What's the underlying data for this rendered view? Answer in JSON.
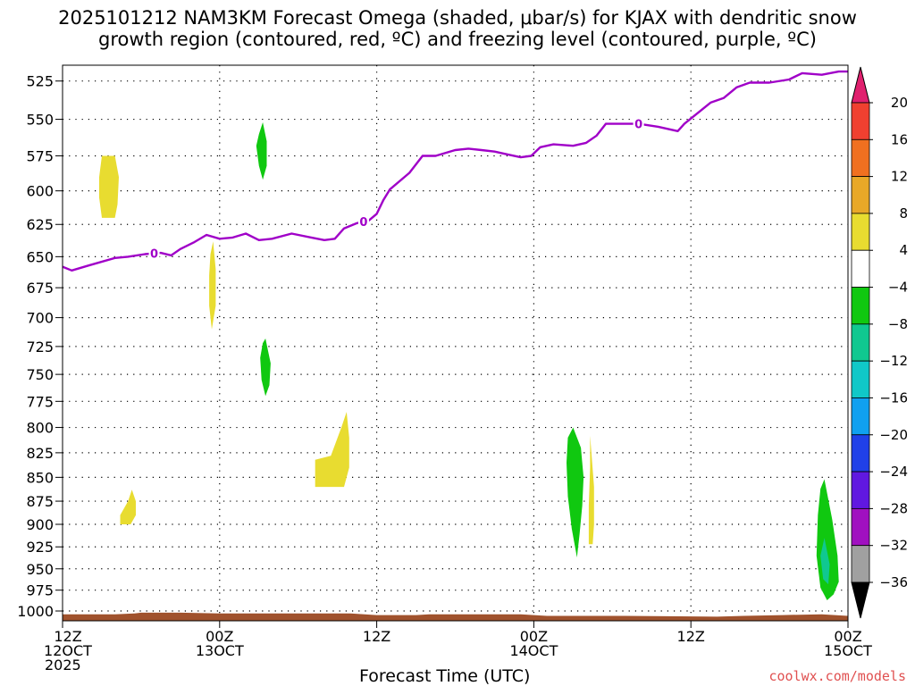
{
  "chart_data": {
    "type": "heatmap",
    "title": "2025101212 NAM3KM Forecast Omega (shaded, μbar/s) for KJAX with dendritic snow",
    "subtitle": "growth region (contoured, red, ºC) and freezing level (contoured, purple, ºC)",
    "xlabel": "Forecast Time (UTC)",
    "x_ticks": [
      {
        "hour": 0,
        "lines": [
          "12Z",
          "12OCT",
          "2025"
        ]
      },
      {
        "hour": 12,
        "lines": [
          "00Z",
          "13OCT"
        ]
      },
      {
        "hour": 24,
        "lines": [
          "12Z"
        ]
      },
      {
        "hour": 36,
        "lines": [
          "00Z",
          "14OCT"
        ]
      },
      {
        "hour": 48,
        "lines": [
          "12Z"
        ]
      },
      {
        "hour": 60,
        "lines": [
          "00Z",
          "15OCT"
        ]
      }
    ],
    "xlim": [
      0,
      60
    ],
    "y_ticks": [
      525,
      550,
      575,
      600,
      625,
      650,
      675,
      700,
      725,
      750,
      775,
      800,
      825,
      850,
      875,
      900,
      925,
      950,
      975,
      1000
    ],
    "ylim": [
      1012,
      515
    ],
    "y_scale": "log",
    "grid": true,
    "colorbar": {
      "labels": [
        "20",
        "16",
        "12",
        "8",
        "4",
        "−4",
        "−8",
        "−12",
        "−16",
        "−20",
        "−24",
        "−28",
        "−32",
        "−36"
      ],
      "colors": [
        "#e0206e",
        "#f04030",
        "#f07020",
        "#e8a828",
        "#e8dc30",
        "#ffffff",
        "#10c810",
        "#10c890",
        "#10c8c8",
        "#10a0f0",
        "#2040e8",
        "#6018e0",
        "#a010c0",
        "#a0a0a0",
        "#000000"
      ]
    },
    "freezing_level": {
      "color": "#a000c8",
      "label": "0",
      "label_hours": [
        7.0,
        23.0,
        44.0
      ],
      "points": [
        [
          0,
          658
        ],
        [
          0.7,
          661
        ],
        [
          2,
          657
        ],
        [
          4,
          651
        ],
        [
          5,
          650
        ],
        [
          6.3,
          648
        ],
        [
          7.5,
          647
        ],
        [
          8.3,
          649
        ],
        [
          9,
          644
        ],
        [
          10,
          639
        ],
        [
          11,
          633
        ],
        [
          12,
          636
        ],
        [
          13,
          635
        ],
        [
          14,
          632
        ],
        [
          15,
          637
        ],
        [
          16,
          636
        ],
        [
          17.5,
          632
        ],
        [
          19,
          635
        ],
        [
          20,
          637
        ],
        [
          20.8,
          636
        ],
        [
          21.5,
          628
        ],
        [
          22.5,
          624
        ],
        [
          23.4,
          622
        ],
        [
          24,
          617
        ],
        [
          24.5,
          607
        ],
        [
          25,
          599
        ],
        [
          26.5,
          587
        ],
        [
          27.5,
          575
        ],
        [
          28.5,
          575
        ],
        [
          30,
          571
        ],
        [
          31,
          570
        ],
        [
          32,
          571
        ],
        [
          33,
          572
        ],
        [
          34,
          574
        ],
        [
          35,
          576
        ],
        [
          35.8,
          575
        ],
        [
          36.5,
          569
        ],
        [
          37.5,
          567
        ],
        [
          39,
          568
        ],
        [
          40,
          566
        ],
        [
          40.8,
          561
        ],
        [
          41.5,
          553
        ],
        [
          42.5,
          553
        ],
        [
          44,
          553
        ],
        [
          45.5,
          555
        ],
        [
          47,
          558
        ],
        [
          47.5,
          553
        ],
        [
          48.5,
          546
        ],
        [
          49.5,
          539
        ],
        [
          50.5,
          536
        ],
        [
          51.5,
          529
        ],
        [
          52.5,
          526
        ],
        [
          54,
          526
        ],
        [
          55.5,
          524
        ],
        [
          56.5,
          520
        ],
        [
          58,
          521
        ],
        [
          59.3,
          519
        ],
        [
          60,
          519
        ]
      ]
    },
    "omega_regions": [
      {
        "color": "#e8dc30",
        "points": [
          [
            3,
            575
          ],
          [
            4,
            575
          ],
          [
            4.3,
            590
          ],
          [
            4.2,
            610
          ],
          [
            4,
            620
          ],
          [
            3,
            620
          ],
          [
            2.8,
            605
          ],
          [
            2.8,
            590
          ]
        ]
      },
      {
        "color": "#10c810",
        "points": [
          [
            15.3,
            552
          ],
          [
            15.6,
            565
          ],
          [
            15.6,
            582
          ],
          [
            15.3,
            592
          ],
          [
            15.0,
            582
          ],
          [
            14.8,
            568
          ],
          [
            15.0,
            560
          ]
        ]
      },
      {
        "color": "#e8dc30",
        "points": [
          [
            11.5,
            638
          ],
          [
            11.7,
            660
          ],
          [
            11.7,
            690
          ],
          [
            11.4,
            710
          ],
          [
            11.2,
            690
          ],
          [
            11.2,
            665
          ],
          [
            11.3,
            648
          ]
        ]
      },
      {
        "color": "#10c810",
        "points": [
          [
            15.5,
            718
          ],
          [
            15.9,
            740
          ],
          [
            15.8,
            760
          ],
          [
            15.5,
            770
          ],
          [
            15.2,
            755
          ],
          [
            15.1,
            735
          ],
          [
            15.3,
            722
          ]
        ]
      },
      {
        "color": "#e8dc30",
        "points": [
          [
            19.3,
            832
          ],
          [
            20.5,
            828
          ],
          [
            21.3,
            800
          ],
          [
            21.7,
            785
          ],
          [
            21.9,
            810
          ],
          [
            21.9,
            840
          ],
          [
            21.5,
            860
          ],
          [
            19.3,
            860
          ]
        ]
      },
      {
        "color": "#e8dc30",
        "points": [
          [
            5.3,
            863
          ],
          [
            5.6,
            875
          ],
          [
            5.6,
            890
          ],
          [
            5.2,
            900
          ],
          [
            4.4,
            900
          ],
          [
            4.4,
            890
          ],
          [
            5.0,
            875
          ]
        ]
      },
      {
        "color": "#10c810",
        "points": [
          [
            39.0,
            800
          ],
          [
            39.6,
            820
          ],
          [
            39.8,
            850
          ],
          [
            39.7,
            880
          ],
          [
            39.5,
            910
          ],
          [
            39.3,
            937
          ],
          [
            38.9,
            905
          ],
          [
            38.6,
            870
          ],
          [
            38.5,
            835
          ],
          [
            38.6,
            810
          ]
        ]
      },
      {
        "color": "#e8dc30",
        "points": [
          [
            40.3,
            808
          ],
          [
            40.6,
            860
          ],
          [
            40.6,
            900
          ],
          [
            40.5,
            922
          ],
          [
            40.2,
            922
          ],
          [
            40.2,
            880
          ],
          [
            40.3,
            840
          ]
        ]
      },
      {
        "color": "#10c810",
        "points": [
          [
            58.2,
            852
          ],
          [
            58.8,
            895
          ],
          [
            59.2,
            935
          ],
          [
            59.3,
            965
          ],
          [
            58.9,
            980
          ],
          [
            58.4,
            987
          ],
          [
            57.9,
            972
          ],
          [
            57.6,
            935
          ],
          [
            57.7,
            890
          ],
          [
            57.9,
            862
          ]
        ]
      },
      {
        "color": "#10c890",
        "points": [
          [
            58.2,
            915
          ],
          [
            58.6,
            945
          ],
          [
            58.5,
            968
          ],
          [
            58.1,
            962
          ],
          [
            57.9,
            935
          ]
        ]
      }
    ],
    "terrain": {
      "color": "#a0522d",
      "top_points": [
        [
          0,
          1004
        ],
        [
          4,
          1004
        ],
        [
          5.5,
          1003
        ],
        [
          6,
          1002
        ],
        [
          9,
          1002
        ],
        [
          12,
          1003
        ],
        [
          16,
          1003
        ],
        [
          22,
          1003
        ],
        [
          24,
          1005
        ],
        [
          27,
          1005
        ],
        [
          28,
          1004
        ],
        [
          35,
          1004
        ],
        [
          37,
          1006
        ],
        [
          43,
          1006
        ],
        [
          50,
          1007
        ],
        [
          52,
          1006
        ],
        [
          55,
          1005
        ],
        [
          58,
          1004
        ],
        [
          60,
          1006
        ]
      ]
    }
  },
  "credit": "coolwx.com/models"
}
